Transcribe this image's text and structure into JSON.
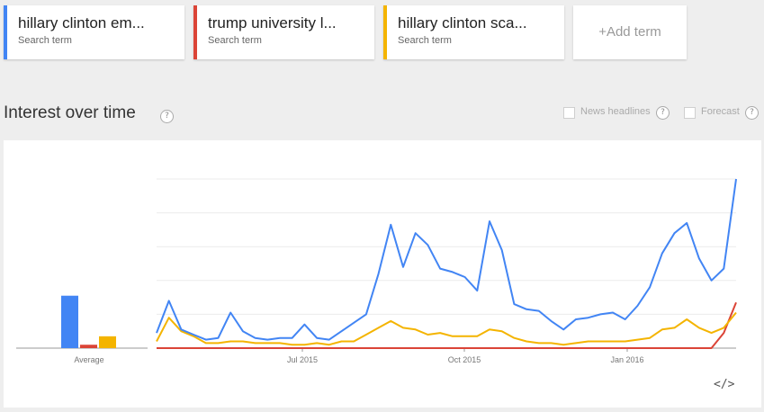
{
  "terms": [
    {
      "name": "hillary clinton em...",
      "sub": "Search term",
      "color": "#4285f4"
    },
    {
      "name": "trump university l...",
      "sub": "Search term",
      "color": "#db4437"
    },
    {
      "name": "hillary clinton sca...",
      "sub": "Search term",
      "color": "#f4b400"
    }
  ],
  "add_term": "+Add term",
  "section": {
    "title": "Interest over time",
    "help_glyph": "?"
  },
  "options": {
    "news_headlines": "News headlines",
    "forecast": "Forecast"
  },
  "embed_glyph": "</>",
  "chart_data": {
    "type": "line",
    "x_tick_labels": [
      "Jul 2015",
      "Oct 2015",
      "Jan 2016"
    ],
    "ylim": [
      0,
      100
    ],
    "grid": true,
    "average_label": "Average",
    "averages": [
      31,
      2,
      7
    ],
    "series": [
      {
        "name": "hillary clinton em...",
        "color": "#4285f4",
        "values": [
          9,
          28,
          11,
          8,
          5,
          6,
          21,
          10,
          6,
          5,
          6,
          6,
          14,
          6,
          5,
          10,
          15,
          20,
          44,
          73,
          48,
          68,
          61,
          47,
          45,
          42,
          34,
          75,
          58,
          26,
          23,
          22,
          16,
          11,
          17,
          18,
          20,
          21,
          17,
          25,
          36,
          56,
          68,
          74,
          53,
          40,
          47,
          100
        ]
      },
      {
        "name": "trump university l...",
        "color": "#db4437",
        "values": [
          0,
          0,
          0,
          0,
          0,
          0,
          0,
          0,
          0,
          0,
          0,
          0,
          0,
          0,
          0,
          0,
          0,
          0,
          0,
          0,
          0,
          0,
          0,
          0,
          0,
          0,
          0,
          0,
          0,
          0,
          0,
          0,
          0,
          0,
          0,
          0,
          0,
          0,
          0,
          0,
          0,
          0,
          0,
          0,
          0,
          0,
          9,
          27
        ]
      },
      {
        "name": "hillary clinton sca...",
        "color": "#f4b400",
        "values": [
          4,
          18,
          10,
          7,
          3,
          3,
          4,
          4,
          3,
          3,
          3,
          2,
          2,
          3,
          2,
          4,
          4,
          8,
          12,
          16,
          12,
          11,
          8,
          9,
          7,
          7,
          7,
          11,
          10,
          6,
          4,
          3,
          3,
          2,
          3,
          4,
          4,
          4,
          4,
          5,
          6,
          11,
          12,
          17,
          12,
          9,
          12,
          21
        ]
      }
    ]
  }
}
